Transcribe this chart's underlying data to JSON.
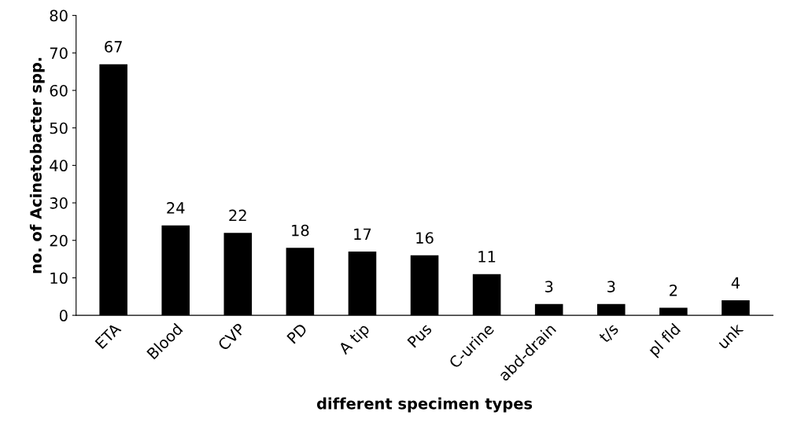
{
  "chart_data": {
    "type": "bar",
    "xlabel": "different specimen types",
    "ylabel": "no. of Acinetobacter spp.",
    "categories": [
      "ETA",
      "Blood",
      "CVP",
      "PD",
      "A tip",
      "Pus",
      "C-urine",
      "abd-drain",
      "t/s",
      "pl fld",
      "unk"
    ],
    "values": [
      67,
      24,
      22,
      18,
      17,
      16,
      11,
      3,
      3,
      2,
      4
    ],
    "color": "#000000",
    "ylim": [
      0,
      80
    ],
    "yticks": [
      0,
      10,
      20,
      30,
      40,
      50,
      60,
      70,
      80
    ],
    "data_labels": true,
    "grid": false,
    "legend": false
  }
}
